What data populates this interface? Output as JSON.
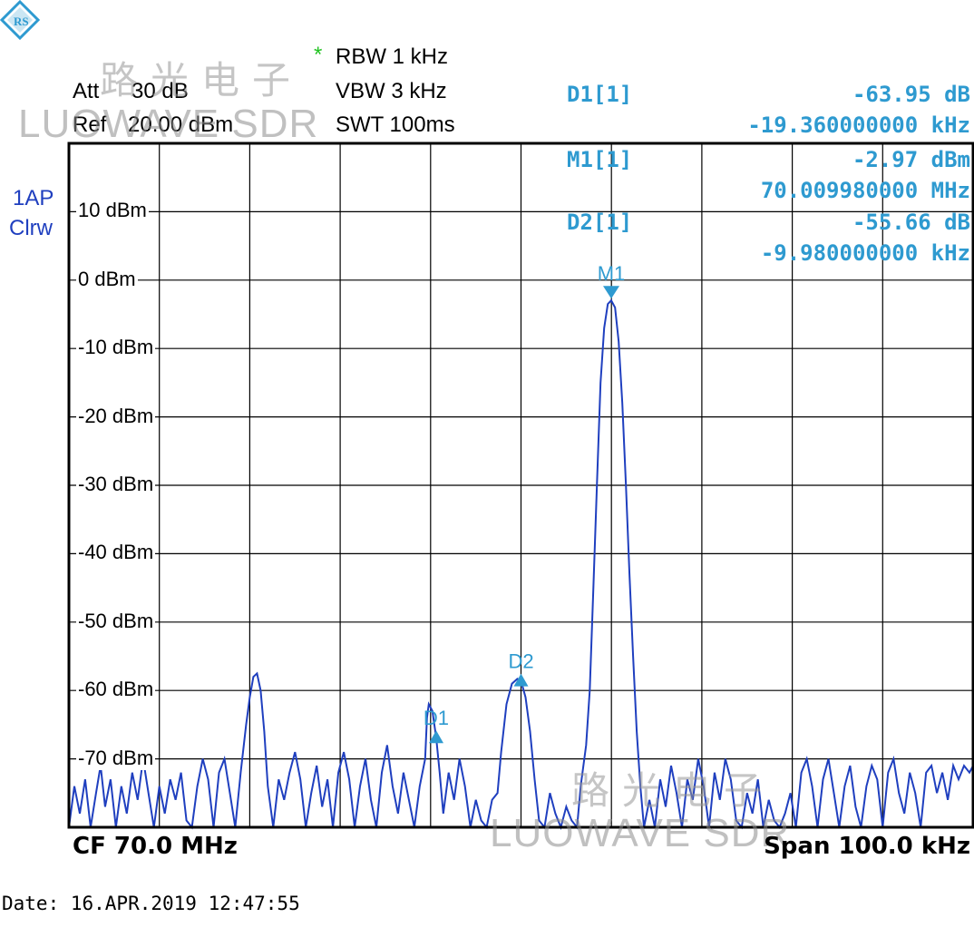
{
  "header": {
    "att_label": "Att",
    "att_value": "30 dB",
    "ref_label": "Ref",
    "ref_value": "20.00 dBm",
    "rbw_marker": "*",
    "rbw": "RBW 1 kHz",
    "vbw": "VBW 3 kHz",
    "swt": "SWT 100ms"
  },
  "trace_label": {
    "line1": "1AP",
    "line2": "Clrw"
  },
  "markers": {
    "d1": {
      "label": "D1[1]",
      "value": "-63.95 dB",
      "freq": "-19.360000000 kHz"
    },
    "m1": {
      "label": "M1[1]",
      "value": "-2.97 dBm",
      "freq": "70.009980000 MHz"
    },
    "d2": {
      "label": "D2[1]",
      "value": "-55.66 dB",
      "freq": "-9.980000000 kHz"
    }
  },
  "footer": {
    "cf": "CF 70.0 MHz",
    "span": "Span 100.0 kHz",
    "date": "Date: 16.APR.2019  12:47:55"
  },
  "watermark": {
    "cn": "路光电子",
    "en": "LUOWAVE SDR"
  },
  "colors": {
    "trace": "#1f3fbf",
    "marker": "#2e9ad0",
    "star": "#22c322",
    "grid": "#000000"
  },
  "chart_data": {
    "type": "line",
    "ylim": [
      -80,
      20
    ],
    "xlim_khz": [
      -50,
      50
    ],
    "ytick_labels": [
      "10 dBm",
      "0 dBm",
      "-10 dBm",
      "-20 dBm",
      "-30 dBm",
      "-40 dBm",
      "-50 dBm",
      "-60 dBm",
      "-70 dBm"
    ],
    "ytick_values": [
      10,
      0,
      -10,
      -20,
      -30,
      -40,
      -50,
      -60,
      -70
    ],
    "grid": true,
    "marker_points": [
      {
        "name": "M1",
        "x": 9.98,
        "y": -2.97
      },
      {
        "name": "D1",
        "x": -9.38,
        "y": -66.9
      },
      {
        "name": "D2",
        "x": 0.0,
        "y": -58.6
      }
    ],
    "trace": [
      [
        -50,
        -80
      ],
      [
        -49.4,
        -74
      ],
      [
        -48.8,
        -78
      ],
      [
        -48.2,
        -73
      ],
      [
        -47.6,
        -80
      ],
      [
        -47,
        -75
      ],
      [
        -46.5,
        -71
      ],
      [
        -46,
        -77
      ],
      [
        -45.4,
        -73
      ],
      [
        -44.8,
        -80
      ],
      [
        -44.2,
        -74
      ],
      [
        -43.6,
        -78
      ],
      [
        -43,
        -72
      ],
      [
        -42.4,
        -76
      ],
      [
        -41.8,
        -70
      ],
      [
        -41.2,
        -75
      ],
      [
        -40.6,
        -80
      ],
      [
        -40,
        -74
      ],
      [
        -39.4,
        -78
      ],
      [
        -38.8,
        -73
      ],
      [
        -38.2,
        -76
      ],
      [
        -37.6,
        -72
      ],
      [
        -37,
        -79
      ],
      [
        -36.4,
        -80
      ],
      [
        -35.8,
        -74
      ],
      [
        -35.2,
        -70
      ],
      [
        -34.6,
        -73
      ],
      [
        -34,
        -80
      ],
      [
        -33.4,
        -72
      ],
      [
        -32.8,
        -70
      ],
      [
        -32.2,
        -75
      ],
      [
        -31.6,
        -80
      ],
      [
        -31,
        -72
      ],
      [
        -30.4,
        -65
      ],
      [
        -30,
        -61
      ],
      [
        -29.6,
        -58
      ],
      [
        -29.2,
        -57.5
      ],
      [
        -28.8,
        -60
      ],
      [
        -28.4,
        -66
      ],
      [
        -28,
        -74
      ],
      [
        -27.4,
        -80
      ],
      [
        -26.8,
        -73
      ],
      [
        -26.2,
        -76
      ],
      [
        -25.6,
        -72
      ],
      [
        -25,
        -69
      ],
      [
        -24.4,
        -73
      ],
      [
        -23.8,
        -80
      ],
      [
        -23.2,
        -75
      ],
      [
        -22.6,
        -71
      ],
      [
        -22,
        -77
      ],
      [
        -21.4,
        -73
      ],
      [
        -20.8,
        -80
      ],
      [
        -20.2,
        -72
      ],
      [
        -19.6,
        -69
      ],
      [
        -19,
        -73
      ],
      [
        -18.4,
        -80
      ],
      [
        -17.8,
        -74
      ],
      [
        -17.2,
        -70
      ],
      [
        -16.6,
        -76
      ],
      [
        -16,
        -80
      ],
      [
        -15.4,
        -72
      ],
      [
        -14.8,
        -68
      ],
      [
        -14.2,
        -74
      ],
      [
        -13.6,
        -78
      ],
      [
        -13,
        -72
      ],
      [
        -12.4,
        -76
      ],
      [
        -11.8,
        -80
      ],
      [
        -11.2,
        -74
      ],
      [
        -10.6,
        -70
      ],
      [
        -10.4,
        -64
      ],
      [
        -10.2,
        -62
      ],
      [
        -9.8,
        -63
      ],
      [
        -9.38,
        -66.9
      ],
      [
        -9,
        -72
      ],
      [
        -8.6,
        -78
      ],
      [
        -8,
        -72
      ],
      [
        -7.4,
        -76
      ],
      [
        -6.8,
        -70
      ],
      [
        -6.2,
        -74
      ],
      [
        -5.6,
        -80
      ],
      [
        -5,
        -76
      ],
      [
        -4.4,
        -79
      ],
      [
        -3.8,
        -80
      ],
      [
        -3.2,
        -76
      ],
      [
        -2.6,
        -75
      ],
      [
        -2.2,
        -69
      ],
      [
        -1.6,
        -62
      ],
      [
        -1,
        -59
      ],
      [
        -0.4,
        -58.3
      ],
      [
        0,
        -58.6
      ],
      [
        0.5,
        -61
      ],
      [
        1,
        -66
      ],
      [
        1.5,
        -73
      ],
      [
        2,
        -79
      ],
      [
        2.6,
        -80
      ],
      [
        3.2,
        -75
      ],
      [
        3.8,
        -78
      ],
      [
        4.4,
        -80
      ],
      [
        5,
        -77
      ],
      [
        5.6,
        -79
      ],
      [
        6.2,
        -80
      ],
      [
        6.6,
        -74
      ],
      [
        7.2,
        -68
      ],
      [
        7.6,
        -60
      ],
      [
        8,
        -45
      ],
      [
        8.4,
        -30
      ],
      [
        8.8,
        -15
      ],
      [
        9.2,
        -7
      ],
      [
        9.6,
        -3.5
      ],
      [
        9.98,
        -2.97
      ],
      [
        10.4,
        -4
      ],
      [
        10.8,
        -9
      ],
      [
        11.2,
        -18
      ],
      [
        11.6,
        -30
      ],
      [
        12,
        -43
      ],
      [
        12.4,
        -55
      ],
      [
        12.8,
        -66
      ],
      [
        13.2,
        -74
      ],
      [
        13.6,
        -80
      ],
      [
        14.2,
        -76
      ],
      [
        14.8,
        -80
      ],
      [
        15.4,
        -73
      ],
      [
        16,
        -77
      ],
      [
        16.6,
        -71
      ],
      [
        17.2,
        -75
      ],
      [
        17.8,
        -80
      ],
      [
        18.4,
        -73
      ],
      [
        19,
        -76
      ],
      [
        19.6,
        -70
      ],
      [
        20.2,
        -74
      ],
      [
        20.8,
        -80
      ],
      [
        21.4,
        -72
      ],
      [
        22,
        -76
      ],
      [
        22.6,
        -70
      ],
      [
        23.2,
        -73
      ],
      [
        23.8,
        -79
      ],
      [
        24.4,
        -80
      ],
      [
        25,
        -75
      ],
      [
        25.6,
        -78
      ],
      [
        26.2,
        -73
      ],
      [
        26.8,
        -80
      ],
      [
        27.4,
        -76
      ],
      [
        28,
        -79
      ],
      [
        28.6,
        -80
      ],
      [
        29.2,
        -78
      ],
      [
        29.8,
        -75
      ],
      [
        30.4,
        -80
      ],
      [
        31,
        -72
      ],
      [
        31.6,
        -70
      ],
      [
        32.2,
        -74
      ],
      [
        32.8,
        -80
      ],
      [
        33.4,
        -73
      ],
      [
        34,
        -70
      ],
      [
        34.6,
        -75
      ],
      [
        35.2,
        -80
      ],
      [
        35.8,
        -74
      ],
      [
        36.4,
        -71
      ],
      [
        37,
        -77
      ],
      [
        37.6,
        -80
      ],
      [
        38.2,
        -74
      ],
      [
        38.8,
        -71
      ],
      [
        39.4,
        -73
      ],
      [
        40,
        -80
      ],
      [
        40.6,
        -72
      ],
      [
        41.2,
        -70
      ],
      [
        41.8,
        -75
      ],
      [
        42.4,
        -78
      ],
      [
        43,
        -72
      ],
      [
        43.6,
        -75
      ],
      [
        44.2,
        -80
      ],
      [
        44.8,
        -72
      ],
      [
        45.4,
        -71
      ],
      [
        46,
        -75
      ],
      [
        46.6,
        -72
      ],
      [
        47.2,
        -76
      ],
      [
        47.8,
        -71
      ],
      [
        48.4,
        -73
      ],
      [
        49,
        -71
      ],
      [
        49.6,
        -72
      ],
      [
        50,
        -71
      ]
    ]
  }
}
